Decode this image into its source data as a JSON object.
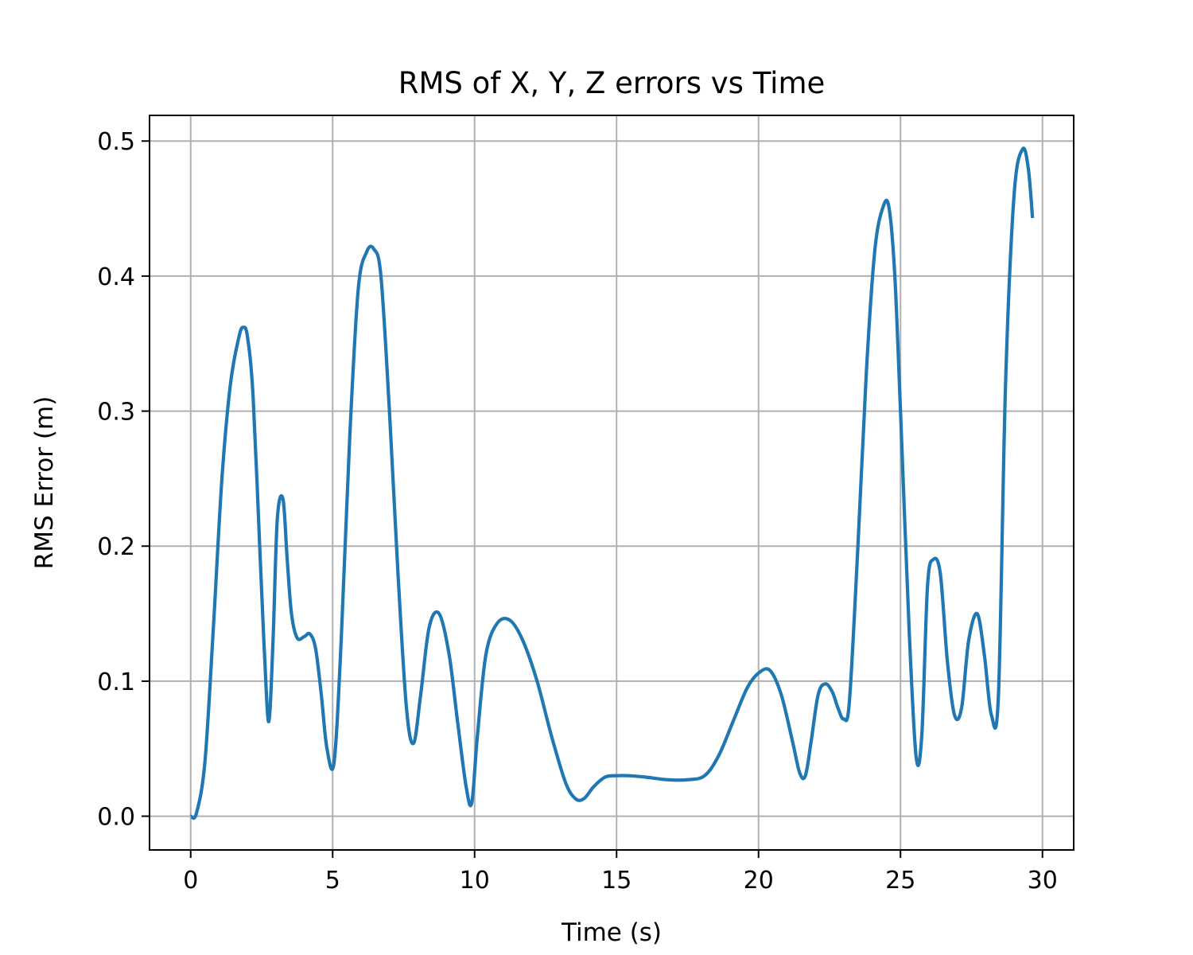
{
  "chart_data": {
    "type": "line",
    "title": "RMS of X, Y, Z errors vs Time",
    "xlabel": "Time (s)",
    "ylabel": "RMS Error (m)",
    "xlim": [
      -1.45,
      31.1
    ],
    "ylim": [
      -0.025,
      0.519
    ],
    "xticks": [
      0,
      5,
      10,
      15,
      20,
      25,
      30
    ],
    "xtick_labels": [
      "0",
      "5",
      "10",
      "15",
      "20",
      "25",
      "30"
    ],
    "yticks": [
      0.0,
      0.1,
      0.2,
      0.3,
      0.4,
      0.5
    ],
    "ytick_labels": [
      "0.0",
      "0.1",
      "0.2",
      "0.3",
      "0.4",
      "0.5"
    ],
    "grid": true,
    "line_color": "#1f77b4",
    "series": [
      {
        "x": [
          0,
          0.2,
          0.5,
          0.8,
          1.1,
          1.4,
          1.7,
          1.85,
          2.0,
          2.2,
          2.45,
          2.6,
          2.75,
          2.9,
          3.05,
          3.25,
          3.4,
          3.55,
          3.75,
          4.0,
          4.2,
          4.4,
          4.6,
          4.8,
          5.05,
          5.3,
          5.6,
          5.9,
          6.2,
          6.45,
          6.7,
          7.0,
          7.3,
          7.6,
          7.85,
          8.1,
          8.4,
          8.75,
          9.1,
          9.4,
          9.7,
          9.9,
          10.1,
          10.4,
          10.8,
          11.25,
          11.7,
          12.2,
          12.7,
          13.2,
          13.55,
          13.85,
          14.2,
          14.6,
          15.0,
          15.4,
          16.0,
          16.8,
          17.5,
          18.1,
          18.6,
          19.1,
          19.6,
          20.0,
          20.4,
          20.8,
          21.2,
          21.45,
          21.65,
          21.85,
          22.1,
          22.35,
          22.6,
          22.8,
          23.0,
          23.2,
          23.5,
          23.8,
          24.1,
          24.4,
          24.6,
          24.8,
          25.0,
          25.3,
          25.55,
          25.75,
          25.95,
          26.15,
          26.4,
          26.65,
          26.9,
          27.15,
          27.4,
          27.7,
          27.95,
          28.2,
          28.45,
          28.7,
          29.0,
          29.3,
          29.5,
          29.65
        ],
        "y": [
          0.0,
          0.002,
          0.04,
          0.14,
          0.25,
          0.32,
          0.355,
          0.362,
          0.355,
          0.31,
          0.19,
          0.12,
          0.07,
          0.13,
          0.22,
          0.235,
          0.19,
          0.15,
          0.132,
          0.133,
          0.135,
          0.124,
          0.09,
          0.05,
          0.04,
          0.13,
          0.28,
          0.39,
          0.418,
          0.42,
          0.4,
          0.3,
          0.18,
          0.08,
          0.054,
          0.09,
          0.14,
          0.15,
          0.12,
          0.07,
          0.022,
          0.01,
          0.06,
          0.12,
          0.143,
          0.145,
          0.13,
          0.1,
          0.06,
          0.025,
          0.013,
          0.013,
          0.022,
          0.029,
          0.03,
          0.03,
          0.029,
          0.027,
          0.027,
          0.03,
          0.045,
          0.07,
          0.095,
          0.106,
          0.108,
          0.09,
          0.055,
          0.032,
          0.03,
          0.055,
          0.09,
          0.098,
          0.092,
          0.08,
          0.072,
          0.085,
          0.2,
          0.33,
          0.42,
          0.452,
          0.45,
          0.4,
          0.3,
          0.14,
          0.044,
          0.06,
          0.17,
          0.19,
          0.18,
          0.115,
          0.075,
          0.08,
          0.13,
          0.15,
          0.12,
          0.075,
          0.09,
          0.32,
          0.46,
          0.494,
          0.48,
          0.443
        ]
      }
    ]
  }
}
